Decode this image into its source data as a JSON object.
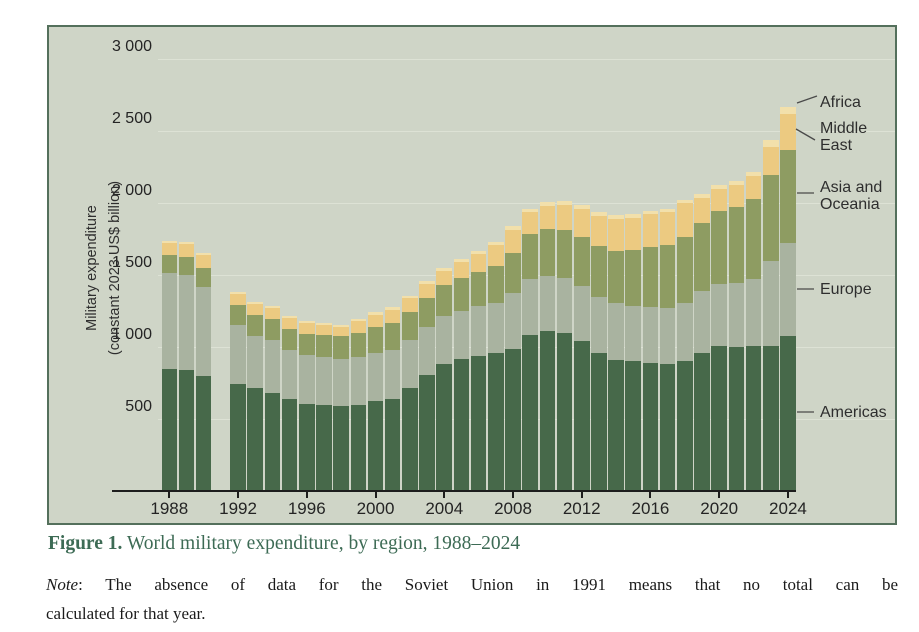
{
  "y_axis": {
    "title_line1": "Military expenditure",
    "title_line2": "(constant 2023 US$ billion)",
    "ticks": [
      {
        "value": 500,
        "label": "500"
      },
      {
        "value": 1000,
        "label": "1 000"
      },
      {
        "value": 1500,
        "label": "1 500"
      },
      {
        "value": 2000,
        "label": "2 000"
      },
      {
        "value": 2500,
        "label": "2 500"
      },
      {
        "value": 3000,
        "label": "3 000"
      }
    ]
  },
  "x_axis": {
    "tick_years": [
      1988,
      1992,
      1996,
      2000,
      2004,
      2008,
      2012,
      2016,
      2020,
      2024
    ]
  },
  "region_labels": [
    {
      "name": "Africa",
      "lines": "Africa"
    },
    {
      "name": "Middle East",
      "lines": "Middle\nEast"
    },
    {
      "name": "Asia and Oceania",
      "lines": "Asia and\nOceania"
    },
    {
      "name": "Europe",
      "lines": "Europe"
    },
    {
      "name": "Americas",
      "lines": "Americas"
    }
  ],
  "caption": {
    "figure_label": "Figure 1.",
    "title": "World military expenditure, by region, 1988–2024"
  },
  "note": {
    "prefix_italic": "Note",
    "line1_rest": ": The absence of data for the Soviet Union in 1991 means that no total can be",
    "line2": "calculated for that year."
  },
  "colors": {
    "panel_bg": "#cfd5c7",
    "panel_border": "#54705c",
    "gridline": "#dde2d5",
    "axis": "#1d1d1d",
    "caption_green": "#3d6b55",
    "americas": "#47694a",
    "europe": "#a9b3a0",
    "asia_oceania": "#8e9c62",
    "middle_east": "#ecca81",
    "africa": "#f2e0ab"
  },
  "chart_data": {
    "type": "bar",
    "stacked": true,
    "title": "World military expenditure, by region, 1988–2024",
    "ylabel": "Military expenditure (constant 2023 US$ billion)",
    "ylim": [
      0,
      3000
    ],
    "y_gridlines": [
      500,
      1000,
      1500,
      2000,
      2500,
      3000
    ],
    "grid": true,
    "legend_position": "right-annotations",
    "missing_data_note": "No bar for 1991 (no data for the Soviet Union, so no world total)",
    "years": [
      1988,
      1989,
      1990,
      1991,
      1992,
      1993,
      1994,
      1995,
      1996,
      1997,
      1998,
      1999,
      2000,
      2001,
      2002,
      2003,
      2004,
      2005,
      2006,
      2007,
      2008,
      2009,
      2010,
      2011,
      2012,
      2013,
      2014,
      2015,
      2016,
      2017,
      2018,
      2019,
      2020,
      2021,
      2022,
      2023,
      2024
    ],
    "series": [
      {
        "name": "Americas",
        "color": "#47694a",
        "values": [
          845,
          838,
          796,
          null,
          740,
          716,
          680,
          638,
          603,
          596,
          588,
          598,
          622,
          640,
          715,
          805,
          880,
          915,
          938,
          955,
          985,
          1085,
          1112,
          1100,
          1040,
          960,
          912,
          900,
          892,
          880,
          905,
          958,
          1008,
          1000,
          1005,
          1010,
          1075
        ]
      },
      {
        "name": "Europe",
        "color": "#a9b3a0",
        "values": [
          670,
          662,
          618,
          null,
          415,
          362,
          368,
          342,
          338,
          332,
          328,
          334,
          336,
          338,
          332,
          332,
          336,
          338,
          344,
          352,
          390,
          388,
          380,
          378,
          385,
          390,
          392,
          385,
          384,
          392,
          400,
          430,
          432,
          445,
          465,
          585,
          650
        ]
      },
      {
        "name": "Asia and Oceania",
        "color": "#8e9c62",
        "values": [
          121,
          126,
          132,
          null,
          138,
          142,
          145,
          148,
          152,
          156,
          158,
          166,
          178,
          188,
          198,
          200,
          212,
          226,
          238,
          255,
          280,
          310,
          328,
          335,
          340,
          350,
          362,
          390,
          415,
          438,
          460,
          475,
          505,
          530,
          555,
          600,
          640
        ]
      },
      {
        "name": "Middle East",
        "color": "#ecca81",
        "values": [
          84,
          89,
          94,
          null,
          77,
          80,
          77,
          73,
          76,
          72,
          68,
          81,
          88,
          94,
          93,
          98,
          103,
          109,
          125,
          145,
          158,
          152,
          160,
          172,
          192,
          212,
          221,
          224,
          230,
          226,
          232,
          173,
          155,
          150,
          165,
          195,
          250
        ]
      },
      {
        "name": "Africa",
        "color": "#f2e0ab",
        "values": [
          15,
          16,
          15,
          null,
          14,
          15,
          15,
          14,
          14,
          14,
          14,
          16,
          17,
          18,
          18,
          20,
          21,
          22,
          23,
          25,
          25,
          26,
          27,
          28,
          28,
          28,
          28,
          26,
          24,
          24,
          23,
          24,
          25,
          26,
          28,
          45,
          55
        ]
      }
    ]
  }
}
